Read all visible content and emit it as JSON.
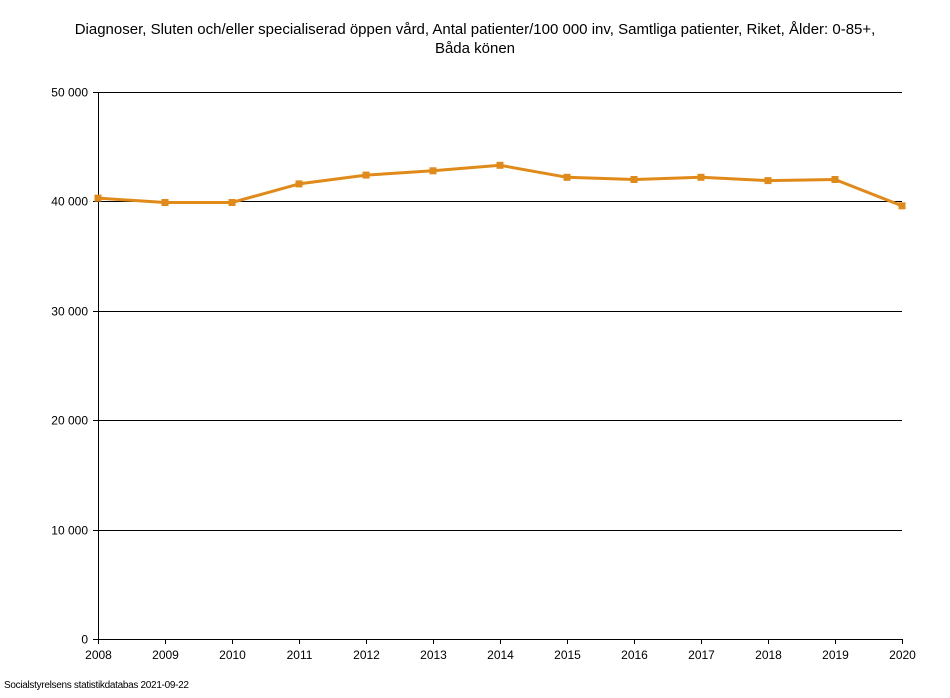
{
  "chart_data": {
    "type": "line",
    "title_lines": [
      "Diagnoser, Sluten och/eller specialiserad öppen vård, Antal patienter/100 000 inv, Samtliga patienter, Riket, Ålder: 0-85+,",
      "Båda könen"
    ],
    "x": [
      "2008",
      "2009",
      "2010",
      "2011",
      "2012",
      "2013",
      "2014",
      "2015",
      "2016",
      "2017",
      "2018",
      "2019",
      "2020"
    ],
    "series": [
      {
        "values": [
          40300,
          39900,
          39900,
          41600,
          42400,
          42800,
          43300,
          42200,
          42000,
          42200,
          41900,
          42000,
          39600
        ],
        "color": "#e08a1a"
      }
    ],
    "ylim": [
      0,
      50000
    ],
    "yticks": [
      0,
      10000,
      20000,
      30000,
      40000,
      50000
    ],
    "ytick_labels": [
      "0",
      "10 000",
      "20 000",
      "30 000",
      "40 000",
      "50 000"
    ],
    "grid": true,
    "marker": "square"
  },
  "footer": {
    "source": "Socialstyrelsens statistikdatabas 2021-09-22"
  }
}
